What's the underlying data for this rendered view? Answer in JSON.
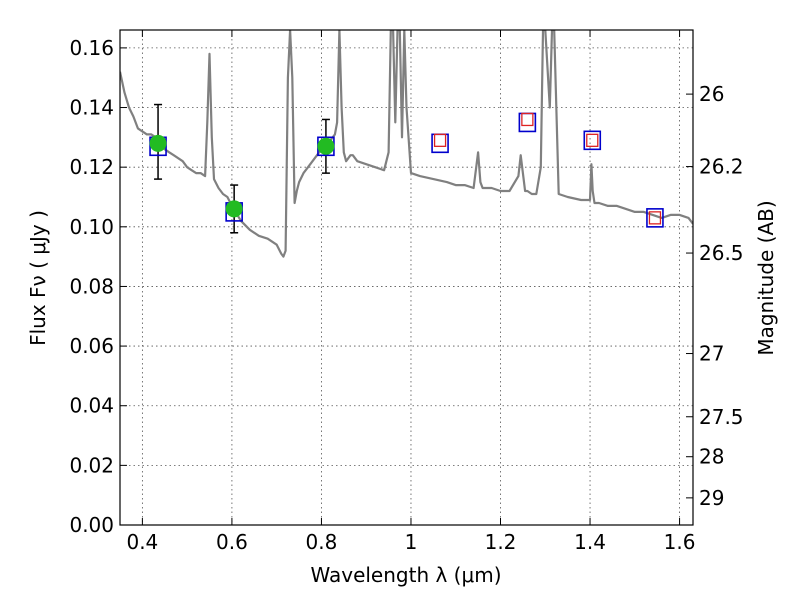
{
  "chart_data": {
    "type": "scatter",
    "xlabel": "Wavelength  λ (μm)",
    "ylabel": "Flux  Fν  ( μJy )",
    "y2label": "Magnitude (AB)",
    "xlim": [
      0.35,
      1.63
    ],
    "ylim": [
      0.0,
      0.166
    ],
    "grid": true,
    "x_ticks": [
      0.4,
      0.6,
      0.8,
      1.0,
      1.2,
      1.4,
      1.6
    ],
    "x_tick_labels": [
      "0.4",
      "0.6",
      "0.8",
      "1",
      "1.2",
      "1.4",
      "1.6"
    ],
    "y_ticks": [
      0.0,
      0.02,
      0.04,
      0.06,
      0.08,
      0.1,
      0.12,
      0.14,
      0.16
    ],
    "y_tick_labels": [
      "0.00",
      "0.02",
      "0.04",
      "0.06",
      "0.08",
      "0.10",
      "0.12",
      "0.14",
      "0.16"
    ],
    "y2_ticks": [
      {
        "label": "26",
        "flux": 0.1445
      },
      {
        "label": "26.2",
        "flux": 0.1202
      },
      {
        "label": "26.5",
        "flux": 0.0912
      },
      {
        "label": "27",
        "flux": 0.0575
      },
      {
        "label": "27.5",
        "flux": 0.0363
      },
      {
        "label": "28",
        "flux": 0.0229
      },
      {
        "label": "29",
        "flux": 0.0091
      }
    ],
    "series": [
      {
        "kind": "spectrum",
        "color": "#808080",
        "x": [
          0.35,
          0.36,
          0.37,
          0.38,
          0.39,
          0.4,
          0.41,
          0.42,
          0.43,
          0.44,
          0.45,
          0.46,
          0.47,
          0.48,
          0.49,
          0.5,
          0.51,
          0.52,
          0.53,
          0.54,
          0.545,
          0.55,
          0.555,
          0.56,
          0.57,
          0.58,
          0.59,
          0.6,
          0.62,
          0.64,
          0.66,
          0.68,
          0.7,
          0.71,
          0.715,
          0.72,
          0.725,
          0.73,
          0.735,
          0.74,
          0.745,
          0.75,
          0.76,
          0.77,
          0.78,
          0.79,
          0.8,
          0.81,
          0.82,
          0.83,
          0.835,
          0.84,
          0.845,
          0.85,
          0.855,
          0.86,
          0.865,
          0.87,
          0.88,
          0.9,
          0.92,
          0.94,
          0.95,
          0.955,
          0.96,
          0.965,
          0.97,
          0.975,
          0.98,
          0.985,
          0.99,
          1.0,
          1.02,
          1.05,
          1.08,
          1.1,
          1.12,
          1.14,
          1.15,
          1.155,
          1.16,
          1.18,
          1.2,
          1.22,
          1.24,
          1.245,
          1.25,
          1.255,
          1.26,
          1.27,
          1.28,
          1.29,
          1.295,
          1.3,
          1.31,
          1.315,
          1.32,
          1.33,
          1.35,
          1.38,
          1.4,
          1.403,
          1.406,
          1.41,
          1.42,
          1.44,
          1.46,
          1.48,
          1.5,
          1.52,
          1.54,
          1.56,
          1.58,
          1.6,
          1.62,
          1.63
        ],
        "y": [
          0.152,
          0.145,
          0.14,
          0.137,
          0.133,
          0.132,
          0.131,
          0.131,
          0.13,
          0.128,
          0.126,
          0.125,
          0.124,
          0.123,
          0.122,
          0.12,
          0.119,
          0.118,
          0.118,
          0.117,
          0.135,
          0.158,
          0.13,
          0.116,
          0.113,
          0.111,
          0.11,
          0.107,
          0.102,
          0.099,
          0.097,
          0.096,
          0.094,
          0.091,
          0.09,
          0.092,
          0.15,
          0.166,
          0.15,
          0.108,
          0.112,
          0.115,
          0.118,
          0.12,
          0.122,
          0.124,
          0.126,
          0.128,
          0.129,
          0.131,
          0.135,
          0.166,
          0.14,
          0.125,
          0.122,
          0.123,
          0.124,
          0.124,
          0.122,
          0.121,
          0.12,
          0.119,
          0.125,
          0.166,
          0.166,
          0.135,
          0.166,
          0.166,
          0.13,
          0.166,
          0.14,
          0.118,
          0.117,
          0.116,
          0.115,
          0.114,
          0.114,
          0.113,
          0.125,
          0.115,
          0.113,
          0.113,
          0.112,
          0.112,
          0.117,
          0.124,
          0.118,
          0.112,
          0.112,
          0.111,
          0.111,
          0.12,
          0.166,
          0.166,
          0.14,
          0.166,
          0.166,
          0.111,
          0.11,
          0.109,
          0.109,
          0.121,
          0.112,
          0.108,
          0.108,
          0.107,
          0.107,
          0.106,
          0.105,
          0.105,
          0.104,
          0.103,
          0.104,
          0.104,
          0.103,
          0.101
        ],
        "points": [
          {
            "x": 0.55,
            "y": 0.158
          },
          {
            "x": 0.73,
            "y": 0.166
          },
          {
            "x": 0.85,
            "y": 0.166
          },
          {
            "x": 0.96,
            "y": 0.166
          },
          {
            "x": 1.155,
            "y": 0.125
          },
          {
            "x": 1.25,
            "y": 0.124
          },
          {
            "x": 1.3,
            "y": 0.166
          },
          {
            "x": 1.4,
            "y": 0.121
          }
        ]
      },
      {
        "kind": "observed",
        "marker": "circle",
        "color": "#22bb22",
        "x": [
          0.435,
          0.605,
          0.81
        ],
        "y": [
          0.128,
          0.106,
          0.127
        ],
        "yerr_low": [
          0.012,
          0.008,
          0.009
        ],
        "yerr_high": [
          0.013,
          0.008,
          0.009
        ]
      },
      {
        "kind": "model-photometry",
        "marker": "square",
        "color": "#0000cc",
        "x": [
          0.435,
          0.605,
          0.81,
          1.065,
          1.26,
          1.405,
          1.545
        ],
        "y": [
          0.127,
          0.105,
          0.127,
          0.128,
          0.135,
          0.129,
          0.103
        ]
      },
      {
        "kind": "upper-bands",
        "marker": "square-open",
        "color": "#dd2222",
        "x": [
          1.065,
          1.26,
          1.405,
          1.545
        ],
        "y": [
          0.129,
          0.136,
          0.129,
          0.103
        ]
      }
    ]
  }
}
